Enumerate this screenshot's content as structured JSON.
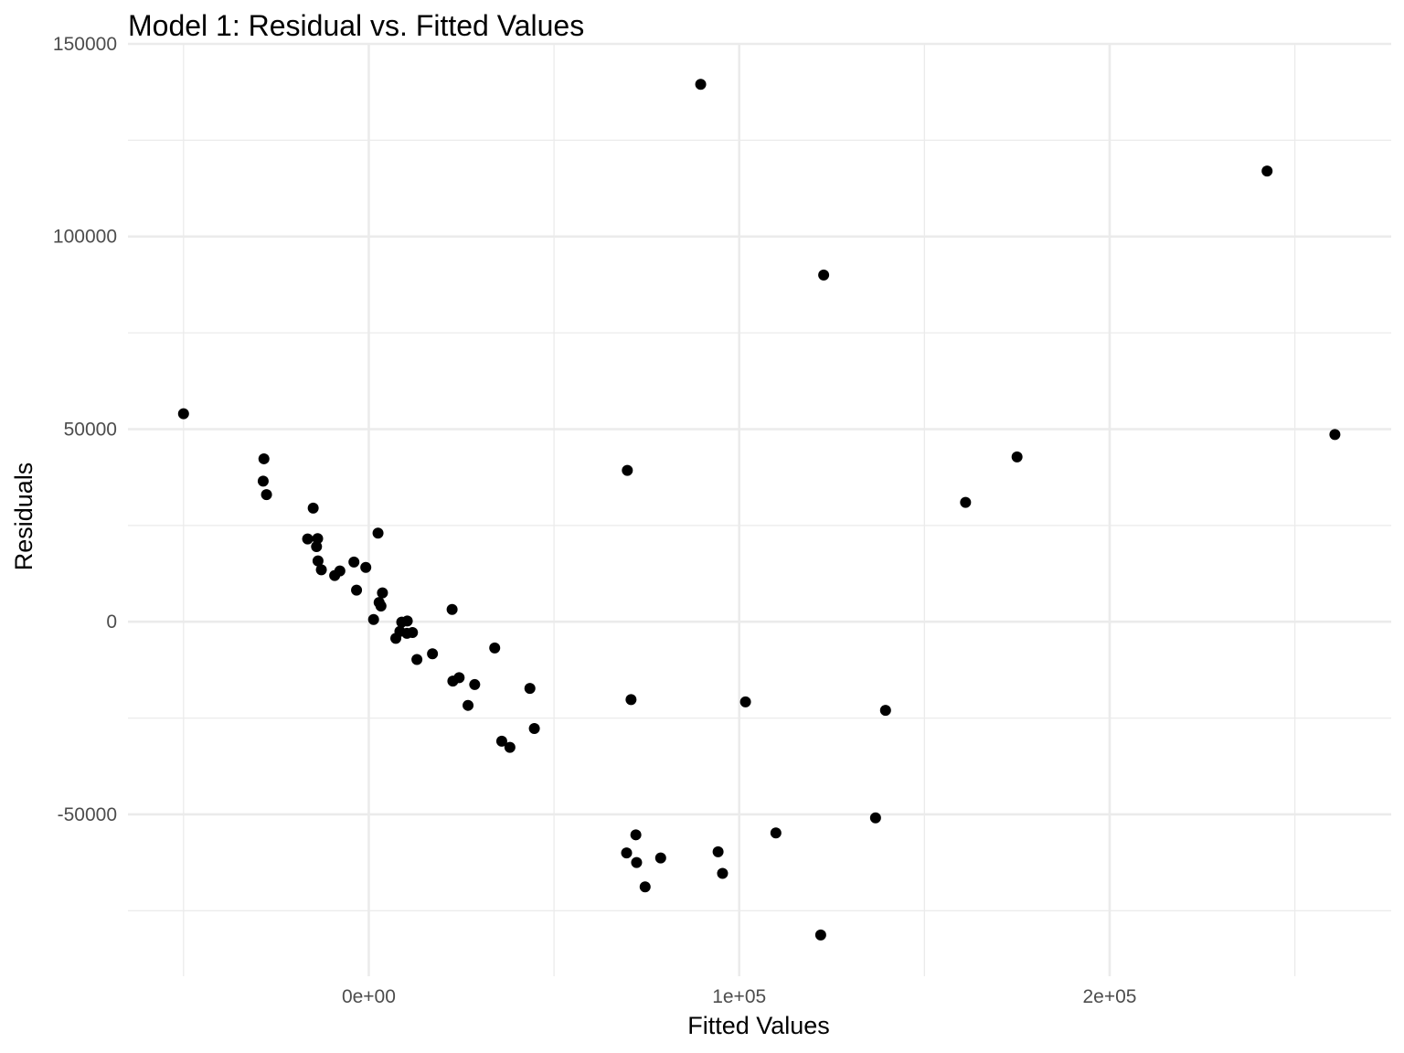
{
  "chart_data": {
    "type": "scatter",
    "title": "Model 1: Residual vs. Fitted Values",
    "xlabel": "Fitted Values",
    "ylabel": "Residuals",
    "xlim": [
      -65000,
      276000
    ],
    "ylim": [
      -92000,
      150000
    ],
    "x_major_ticks": [
      0,
      100000,
      200000
    ],
    "x_tick_labels": [
      "0e+00",
      "1e+05",
      "2e+05"
    ],
    "x_minor_ticks": [
      -50000,
      50000,
      150000,
      250000
    ],
    "y_major_ticks": [
      -50000,
      0,
      50000,
      100000,
      150000
    ],
    "y_tick_labels": [
      "-50000",
      "0",
      "50000",
      "100000",
      "150000"
    ],
    "y_minor_ticks": [
      -75000,
      -25000,
      25000,
      75000,
      125000
    ],
    "grid": true,
    "colors": {
      "point": "#000000",
      "grid": "#ebebeb",
      "tick_text": "#4d4d4d",
      "background": "#ffffff"
    },
    "points": [
      {
        "x": -50000,
        "y": 54000
      },
      {
        "x": -28300,
        "y": 42300
      },
      {
        "x": -28500,
        "y": 36500
      },
      {
        "x": -27600,
        "y": 33000
      },
      {
        "x": -15000,
        "y": 29500
      },
      {
        "x": -16500,
        "y": 21500
      },
      {
        "x": -13800,
        "y": 21600
      },
      {
        "x": -14100,
        "y": 19500
      },
      {
        "x": -13700,
        "y": 15800
      },
      {
        "x": -12800,
        "y": 13500
      },
      {
        "x": -9200,
        "y": 12000
      },
      {
        "x": -7800,
        "y": 13200
      },
      {
        "x": -4000,
        "y": 15500
      },
      {
        "x": -3300,
        "y": 8200
      },
      {
        "x": -800,
        "y": 14100
      },
      {
        "x": 2500,
        "y": 23000
      },
      {
        "x": 1300,
        "y": 600
      },
      {
        "x": 2800,
        "y": 5000
      },
      {
        "x": 3300,
        "y": 4100
      },
      {
        "x": 3700,
        "y": 7500
      },
      {
        "x": 7300,
        "y": -4300
      },
      {
        "x": 8400,
        "y": -2500
      },
      {
        "x": 8900,
        "y": -100
      },
      {
        "x": 10300,
        "y": -3000
      },
      {
        "x": 10400,
        "y": 200
      },
      {
        "x": 11800,
        "y": -2800
      },
      {
        "x": 13000,
        "y": -9800
      },
      {
        "x": 17200,
        "y": -8300
      },
      {
        "x": 22500,
        "y": 3200
      },
      {
        "x": 22700,
        "y": -15400
      },
      {
        "x": 24400,
        "y": -14500
      },
      {
        "x": 26800,
        "y": -21700
      },
      {
        "x": 28600,
        "y": -16300
      },
      {
        "x": 34000,
        "y": -6800
      },
      {
        "x": 35900,
        "y": -31000
      },
      {
        "x": 38100,
        "y": -32600
      },
      {
        "x": 43500,
        "y": -17300
      },
      {
        "x": 44700,
        "y": -27700
      },
      {
        "x": 69800,
        "y": 39300
      },
      {
        "x": 70800,
        "y": -20200
      },
      {
        "x": 69600,
        "y": -60000
      },
      {
        "x": 72100,
        "y": -55300
      },
      {
        "x": 72300,
        "y": -62500
      },
      {
        "x": 74600,
        "y": -68800
      },
      {
        "x": 78800,
        "y": -61300
      },
      {
        "x": 89600,
        "y": 139500
      },
      {
        "x": 94300,
        "y": -59700
      },
      {
        "x": 95500,
        "y": -65300
      },
      {
        "x": 101700,
        "y": -20800
      },
      {
        "x": 109900,
        "y": -54800
      },
      {
        "x": 122800,
        "y": 90000
      },
      {
        "x": 122000,
        "y": -81300
      },
      {
        "x": 136800,
        "y": -50900
      },
      {
        "x": 139500,
        "y": -23000
      },
      {
        "x": 161100,
        "y": 31000
      },
      {
        "x": 175000,
        "y": 42800
      },
      {
        "x": 242500,
        "y": 117000
      },
      {
        "x": 260800,
        "y": 48600
      }
    ]
  }
}
